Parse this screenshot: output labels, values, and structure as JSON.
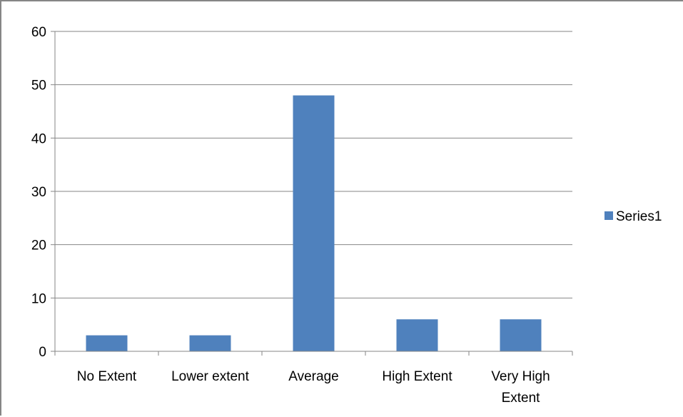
{
  "chart_data": {
    "type": "bar",
    "title": "",
    "xlabel": "",
    "ylabel": "",
    "categories": [
      "No Extent",
      "Lower extent",
      "Average",
      "High Extent",
      "Very High Extent"
    ],
    "category_lines": [
      [
        "No Extent"
      ],
      [
        "Lower extent"
      ],
      [
        "Average"
      ],
      [
        "High Extent"
      ],
      [
        "Very High",
        "Extent"
      ]
    ],
    "series": [
      {
        "name": "Series1",
        "values": [
          3,
          3,
          48,
          6,
          6
        ],
        "color": "#4F81BD"
      }
    ],
    "ylim": [
      0,
      60
    ],
    "yticks": [
      0,
      10,
      20,
      30,
      40,
      50,
      60
    ],
    "grid": true,
    "legend_position": "right",
    "colors": {
      "bar": "#4F81BD",
      "gridline": "#868686",
      "axis": "#868686",
      "frame": "#868686"
    }
  }
}
